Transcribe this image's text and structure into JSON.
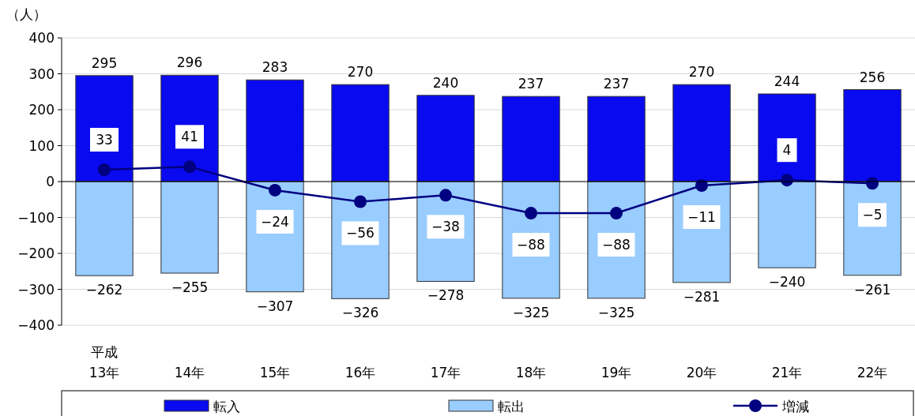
{
  "chart_data": {
    "type": "bar",
    "stacked": true,
    "ylabel": "（人）",
    "categories": [
      "平成\n13年",
      "14年",
      "15年",
      "16年",
      "17年",
      "18年",
      "19年",
      "20年",
      "21年",
      "22年"
    ],
    "series": [
      {
        "name": "転入",
        "color": "#0a0af0",
        "values": [
          295,
          296,
          283,
          270,
          240,
          237,
          237,
          270,
          244,
          256
        ]
      },
      {
        "name": "転出",
        "color": "#99ccff",
        "values": [
          -262,
          -255,
          -307,
          -326,
          -278,
          -325,
          -325,
          -281,
          -240,
          -261
        ]
      },
      {
        "name": "増減",
        "type": "line",
        "color": "#000080",
        "marker": "circle",
        "line_style": "solid",
        "values": [
          33,
          41,
          -24,
          -56,
          -38,
          -88,
          -88,
          -11,
          4,
          -5
        ]
      }
    ],
    "ylim": [
      -400,
      400
    ],
    "yticks": [
      -400,
      -300,
      -200,
      -100,
      0,
      100,
      200,
      300,
      400
    ],
    "grid": "y",
    "data_labels": true,
    "legend": "bottom"
  }
}
